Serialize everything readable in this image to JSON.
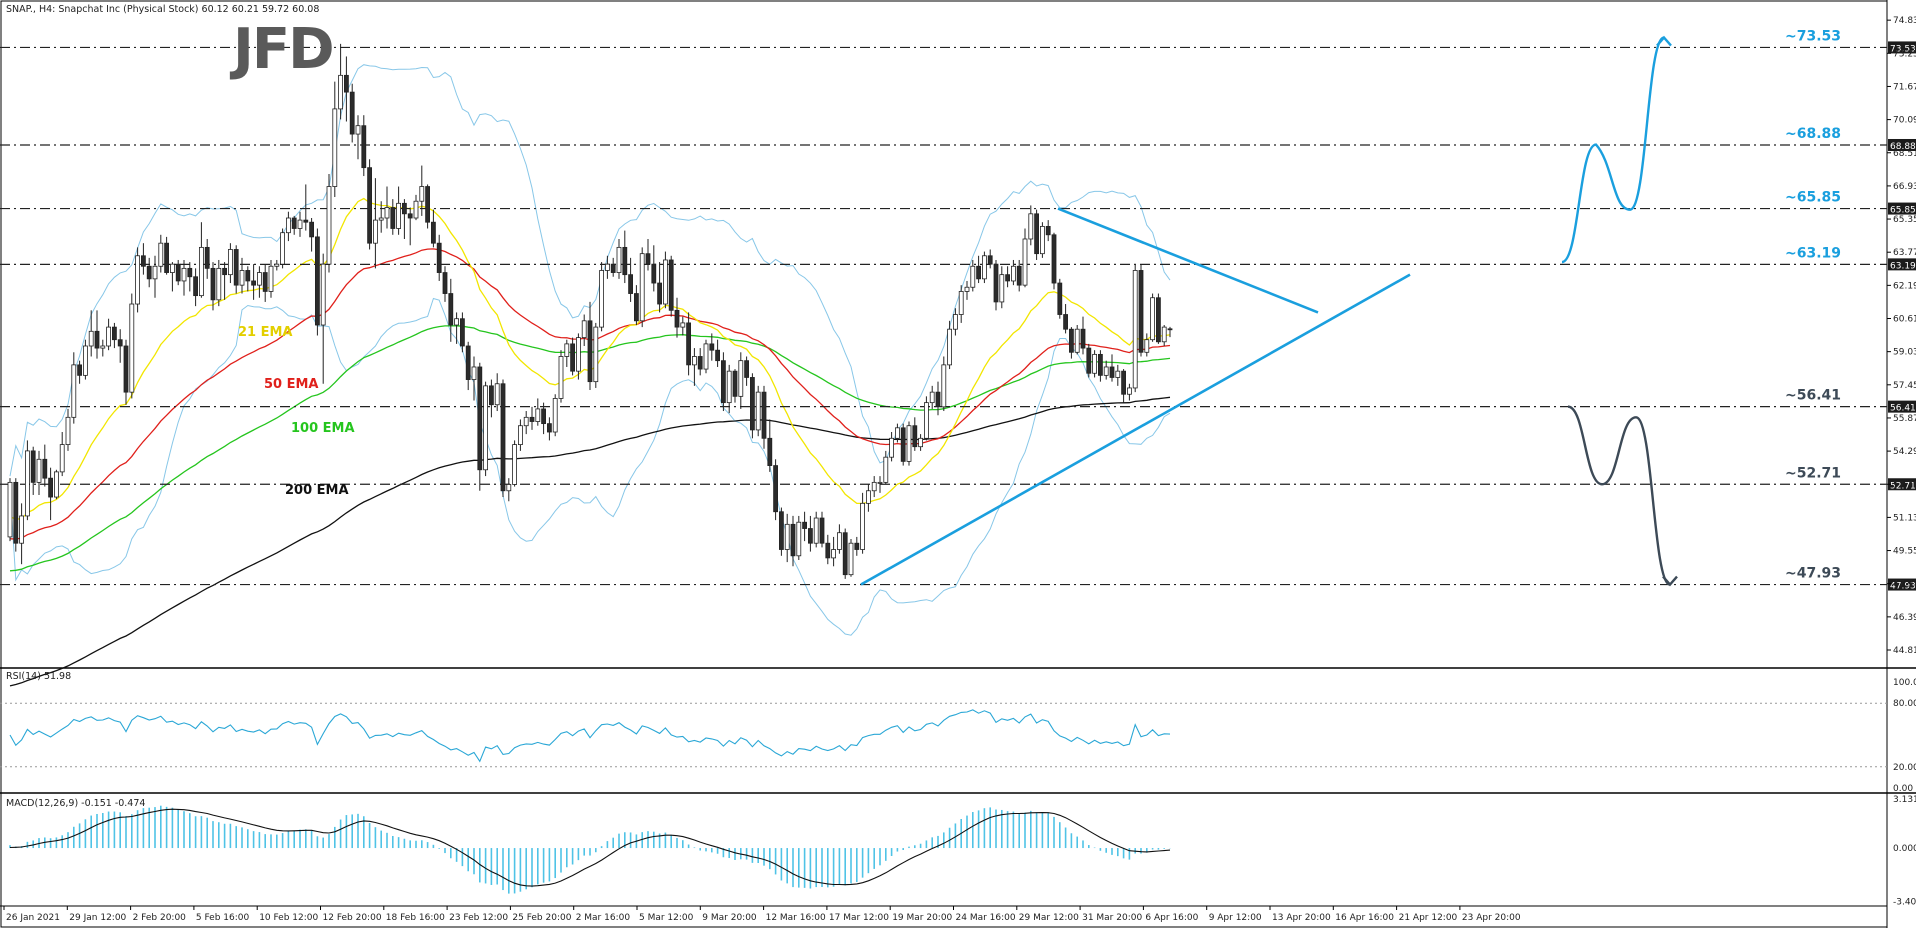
{
  "header": {
    "title": "SNAP., H4:  Snapchat Inc (Physical Stock)  60.12 60.21 59.72 60.08"
  },
  "logo_text": "JFD",
  "colors": {
    "background": "#ffffff",
    "bull_candle": "#ffffff",
    "bear_candle": "#2b2b2b",
    "ema21": "#f2e600",
    "ema50": "#e0201b",
    "ema100": "#25c51e",
    "ema200": "#111111",
    "bollinger": "#88c7e8",
    "trendline": "#1a9fde",
    "level_label": "#1a9fde",
    "scenario_up": "#1a9fde",
    "scenario_down": "#3d4a57",
    "rsi_line": "#2aa7d6",
    "macd_hist": "#4fc3e6",
    "macd_signal": "#111111"
  },
  "ema_labels": {
    "ema21": "21 EMA",
    "ema50": "50 EMA",
    "ema100": "100 EMA",
    "ema200": "200 EMA"
  },
  "levels": [
    {
      "value": 73.53,
      "label": "~73.53",
      "axis_label": "73.53"
    },
    {
      "value": 68.88,
      "label": "~68.88",
      "axis_label": "68.88"
    },
    {
      "value": 65.85,
      "label": "~65.85",
      "axis_label": "65.85"
    },
    {
      "value": 63.19,
      "label": "~63.19",
      "axis_label": "63.19"
    },
    {
      "value": 56.41,
      "label": "~56.41",
      "axis_label": "56.41"
    },
    {
      "value": 52.71,
      "label": "~52.71",
      "axis_label": "52.71"
    },
    {
      "value": 47.93,
      "label": "~47.93",
      "axis_label": "47.93"
    }
  ],
  "price_axis_ticks": [
    "74.83",
    "73.25",
    "71.67",
    "70.09",
    "68.51",
    "66.93",
    "65.35",
    "63.77",
    "62.19",
    "60.61",
    "59.03",
    "57.45",
    "55.87",
    "54.29",
    "52.71",
    "51.13",
    "49.55",
    "47.97",
    "46.39",
    "44.81"
  ],
  "rsi": {
    "label": "RSI(14) 51.98",
    "ticks": [
      "100.00",
      "80.00",
      "20.00",
      "0.00"
    ]
  },
  "macd": {
    "label": "MACD(12,26,9) -0.151 -0.474",
    "ticks": [
      "3.131",
      "0.000",
      "-3.405"
    ]
  },
  "time_axis": [
    "26 Jan 2021",
    "29 Jan 12:00",
    "2 Feb 20:00",
    "5 Feb 16:00",
    "10 Feb 12:00",
    "12 Feb 20:00",
    "18 Feb 16:00",
    "23 Feb 12:00",
    "25 Feb 20:00",
    "2 Mar 16:00",
    "5 Mar 12:00",
    "9 Mar 20:00",
    "12 Mar 16:00",
    "17 Mar 12:00",
    "19 Mar 20:00",
    "24 Mar 16:00",
    "29 Mar 12:00",
    "31 Mar 20:00",
    "6 Apr 16:00",
    "9 Apr 12:00",
    "13 Apr 20:00",
    "16 Apr 16:00",
    "21 Apr 12:00",
    "23 Apr 20:00"
  ],
  "chart_data": {
    "type": "candlestick",
    "symbol": "SNAP",
    "timeframe": "H4",
    "ylim": [
      44.0,
      75.6
    ],
    "candles": [
      [
        50.2,
        53.0,
        50.0,
        52.8
      ],
      [
        52.8,
        53.0,
        49.5,
        49.9
      ],
      [
        49.9,
        51.8,
        48.9,
        51.2
      ],
      [
        51.2,
        54.8,
        51.0,
        54.3
      ],
      [
        54.3,
        54.5,
        52.2,
        52.8
      ],
      [
        52.8,
        54.3,
        52.2,
        53.9
      ],
      [
        53.9,
        54.6,
        52.6,
        53.0
      ],
      [
        53.0,
        53.5,
        51.0,
        52.1
      ],
      [
        52.1,
        53.4,
        52.0,
        53.3
      ],
      [
        53.3,
        55.2,
        53.1,
        54.6
      ],
      [
        54.6,
        56.3,
        54.3,
        55.9
      ],
      [
        55.9,
        59.0,
        55.6,
        58.4
      ],
      [
        58.4,
        58.6,
        57.5,
        57.9
      ],
      [
        57.9,
        59.6,
        57.7,
        59.3
      ],
      [
        59.3,
        61.0,
        58.8,
        60.0
      ],
      [
        60.0,
        61.0,
        58.7,
        59.2
      ],
      [
        59.2,
        59.6,
        58.8,
        59.3
      ],
      [
        59.3,
        60.6,
        59.1,
        60.2
      ],
      [
        60.2,
        60.4,
        59.2,
        59.6
      ],
      [
        59.6,
        60.1,
        58.5,
        59.3
      ],
      [
        59.3,
        59.6,
        56.5,
        57.1
      ],
      [
        57.1,
        61.8,
        56.8,
        61.3
      ],
      [
        61.3,
        64.0,
        60.9,
        63.6
      ],
      [
        63.6,
        64.2,
        62.7,
        63.1
      ],
      [
        63.1,
        63.5,
        62.1,
        62.5
      ],
      [
        62.5,
        63.6,
        61.6,
        63.1
      ],
      [
        63.1,
        64.6,
        62.8,
        64.2
      ],
      [
        64.2,
        64.5,
        62.7,
        62.8
      ],
      [
        62.8,
        63.3,
        61.9,
        63.2
      ],
      [
        63.2,
        63.4,
        62.2,
        62.4
      ],
      [
        62.4,
        63.4,
        61.7,
        63.0
      ],
      [
        63.0,
        63.3,
        61.9,
        62.6
      ],
      [
        62.6,
        63.0,
        61.2,
        61.7
      ],
      [
        61.7,
        65.2,
        61.6,
        64.0
      ],
      [
        64.0,
        64.4,
        62.5,
        63.0
      ],
      [
        63.0,
        63.3,
        61.0,
        61.5
      ],
      [
        61.5,
        63.4,
        61.2,
        63.0
      ],
      [
        63.0,
        63.3,
        61.5,
        62.7
      ],
      [
        62.7,
        64.2,
        62.3,
        63.9
      ],
      [
        63.9,
        64.1,
        61.8,
        62.2
      ],
      [
        62.2,
        63.5,
        61.8,
        62.9
      ],
      [
        62.9,
        63.1,
        61.9,
        62.4
      ],
      [
        62.4,
        63.2,
        61.5,
        62.2
      ],
      [
        62.2,
        63.1,
        61.6,
        62.8
      ],
      [
        62.8,
        63.2,
        61.4,
        61.9
      ],
      [
        61.9,
        63.4,
        61.6,
        63.1
      ],
      [
        63.1,
        63.4,
        62.9,
        63.2
      ],
      [
        63.2,
        64.9,
        63.0,
        64.7
      ],
      [
        64.7,
        65.7,
        64.3,
        65.4
      ],
      [
        65.4,
        65.5,
        64.6,
        64.9
      ],
      [
        64.9,
        65.7,
        64.5,
        65.3
      ],
      [
        65.3,
        67.0,
        64.8,
        65.2
      ],
      [
        65.2,
        65.4,
        63.8,
        64.5
      ],
      [
        64.5,
        64.9,
        59.8,
        60.3
      ],
      [
        60.3,
        63.7,
        57.5,
        63.2
      ],
      [
        63.2,
        67.5,
        62.8,
        66.9
      ],
      [
        66.9,
        71.9,
        66.4,
        70.6
      ],
      [
        70.6,
        73.7,
        70.1,
        72.2
      ],
      [
        72.2,
        73.1,
        70.0,
        71.4
      ],
      [
        71.4,
        71.8,
        69.0,
        69.4
      ],
      [
        69.4,
        70.3,
        68.2,
        69.8
      ],
      [
        69.8,
        70.3,
        67.4,
        67.8
      ],
      [
        67.8,
        68.2,
        63.9,
        64.2
      ],
      [
        64.2,
        67.3,
        63.0,
        65.3
      ],
      [
        65.3,
        66.2,
        64.7,
        65.4
      ],
      [
        65.4,
        66.9,
        64.9,
        65.9
      ],
      [
        65.9,
        66.3,
        64.6,
        64.9
      ],
      [
        64.9,
        66.9,
        64.6,
        66.1
      ],
      [
        66.1,
        66.3,
        64.4,
        65.6
      ],
      [
        65.6,
        65.9,
        64.1,
        65.4
      ],
      [
        65.4,
        66.5,
        65.3,
        66.2
      ],
      [
        66.2,
        67.9,
        65.5,
        66.9
      ],
      [
        66.9,
        67.0,
        64.9,
        65.2
      ],
      [
        65.2,
        65.8,
        64.0,
        64.2
      ],
      [
        64.2,
        64.6,
        62.4,
        62.8
      ],
      [
        62.8,
        63.1,
        61.4,
        61.8
      ],
      [
        61.8,
        62.5,
        59.5,
        60.3
      ],
      [
        60.3,
        60.9,
        59.4,
        60.6
      ],
      [
        60.6,
        60.9,
        59.0,
        59.3
      ],
      [
        59.3,
        59.5,
        57.2,
        57.7
      ],
      [
        57.7,
        58.8,
        56.7,
        58.3
      ],
      [
        58.3,
        58.5,
        52.4,
        53.4
      ],
      [
        53.4,
        57.6,
        53.1,
        57.4
      ],
      [
        57.4,
        57.7,
        55.9,
        56.5
      ],
      [
        56.5,
        58.0,
        56.2,
        57.5
      ],
      [
        57.5,
        57.7,
        52.1,
        52.4
      ],
      [
        52.4,
        53.0,
        51.9,
        52.7
      ],
      [
        52.7,
        54.8,
        52.6,
        54.6
      ],
      [
        54.6,
        55.8,
        54.3,
        55.5
      ],
      [
        55.5,
        56.2,
        55.1,
        55.9
      ],
      [
        55.9,
        56.4,
        55.3,
        55.7
      ],
      [
        55.7,
        56.8,
        55.5,
        56.3
      ],
      [
        56.3,
        56.6,
        55.1,
        55.6
      ],
      [
        55.6,
        55.9,
        54.8,
        55.2
      ],
      [
        55.2,
        57.0,
        55.0,
        56.8
      ],
      [
        56.8,
        59.1,
        56.6,
        58.8
      ],
      [
        58.8,
        59.6,
        58.3,
        59.4
      ],
      [
        59.4,
        59.7,
        57.9,
        58.1
      ],
      [
        58.1,
        59.9,
        57.7,
        59.7
      ],
      [
        59.7,
        60.8,
        59.3,
        60.5
      ],
      [
        60.5,
        61.4,
        57.2,
        57.6
      ],
      [
        57.6,
        60.4,
        57.3,
        60.2
      ],
      [
        60.2,
        63.3,
        60.0,
        62.9
      ],
      [
        62.9,
        63.6,
        62.5,
        63.2
      ],
      [
        63.2,
        63.5,
        62.6,
        62.8
      ],
      [
        62.8,
        64.4,
        62.5,
        64.0
      ],
      [
        64.0,
        64.8,
        62.3,
        62.7
      ],
      [
        62.7,
        63.5,
        61.4,
        61.8
      ],
      [
        61.8,
        62.2,
        60.3,
        60.5
      ],
      [
        60.5,
        64.0,
        60.2,
        63.7
      ],
      [
        63.7,
        64.4,
        62.9,
        63.2
      ],
      [
        63.2,
        64.1,
        61.9,
        62.3
      ],
      [
        62.3,
        63.3,
        60.9,
        61.3
      ],
      [
        61.3,
        63.8,
        61.1,
        63.4
      ],
      [
        63.4,
        63.6,
        60.7,
        61.0
      ],
      [
        61.0,
        61.6,
        59.7,
        60.2
      ],
      [
        60.2,
        60.7,
        59.8,
        60.4
      ],
      [
        60.4,
        60.9,
        57.9,
        58.4
      ],
      [
        58.4,
        59.2,
        57.4,
        58.8
      ],
      [
        58.8,
        59.2,
        57.9,
        58.2
      ],
      [
        58.2,
        59.6,
        58.0,
        59.4
      ],
      [
        59.4,
        59.9,
        58.6,
        59.1
      ],
      [
        59.1,
        59.6,
        58.3,
        58.6
      ],
      [
        58.6,
        59.0,
        56.2,
        56.6
      ],
      [
        56.6,
        58.4,
        56.1,
        58.1
      ],
      [
        58.1,
        58.2,
        56.6,
        56.9
      ],
      [
        56.9,
        59.0,
        56.3,
        58.6
      ],
      [
        58.6,
        58.8,
        57.4,
        57.8
      ],
      [
        57.8,
        58.0,
        54.9,
        55.3
      ],
      [
        55.3,
        57.4,
        55.0,
        57.1
      ],
      [
        57.1,
        57.4,
        54.4,
        54.9
      ],
      [
        54.9,
        55.8,
        53.3,
        53.6
      ],
      [
        53.6,
        53.9,
        51.0,
        51.4
      ],
      [
        51.4,
        51.6,
        49.3,
        49.6
      ],
      [
        49.6,
        51.3,
        49.0,
        50.8
      ],
      [
        50.8,
        51.2,
        48.8,
        49.3
      ],
      [
        49.3,
        51.2,
        49.1,
        50.9
      ],
      [
        50.9,
        51.4,
        50.0,
        50.6
      ],
      [
        50.6,
        51.2,
        49.5,
        49.9
      ],
      [
        49.9,
        51.4,
        49.7,
        51.1
      ],
      [
        51.1,
        51.4,
        49.7,
        49.9
      ],
      [
        49.9,
        50.3,
        48.9,
        49.2
      ],
      [
        49.2,
        50.2,
        48.8,
        49.6
      ],
      [
        49.6,
        50.8,
        49.4,
        50.4
      ],
      [
        50.4,
        50.6,
        48.2,
        48.4
      ],
      [
        48.4,
        50.1,
        48.3,
        49.9
      ],
      [
        49.9,
        50.2,
        49.3,
        49.6
      ],
      [
        49.6,
        52.3,
        49.4,
        51.8
      ],
      [
        51.8,
        52.7,
        51.4,
        52.4
      ],
      [
        52.4,
        53.1,
        52.1,
        52.8
      ],
      [
        52.8,
        53.1,
        52.3,
        52.8
      ],
      [
        52.8,
        54.3,
        52.7,
        54.0
      ],
      [
        54.0,
        55.2,
        53.8,
        54.9
      ],
      [
        54.9,
        55.6,
        54.7,
        55.4
      ],
      [
        55.4,
        55.6,
        53.6,
        53.8
      ],
      [
        53.8,
        55.7,
        53.6,
        55.5
      ],
      [
        55.5,
        55.9,
        54.3,
        54.5
      ],
      [
        54.5,
        55.1,
        54.3,
        54.9
      ],
      [
        54.9,
        56.9,
        54.8,
        56.6
      ],
      [
        56.6,
        57.4,
        56.3,
        57.1
      ],
      [
        57.1,
        57.6,
        56.0,
        56.4
      ],
      [
        56.4,
        58.8,
        56.2,
        58.4
      ],
      [
        58.4,
        60.5,
        58.2,
        60.1
      ],
      [
        60.1,
        61.1,
        59.8,
        60.8
      ],
      [
        60.8,
        62.2,
        60.4,
        61.9
      ],
      [
        61.9,
        62.4,
        61.5,
        62.1
      ],
      [
        62.1,
        63.4,
        61.9,
        63.1
      ],
      [
        63.1,
        63.6,
        62.3,
        62.5
      ],
      [
        62.5,
        63.8,
        62.3,
        63.6
      ],
      [
        63.6,
        63.9,
        63.0,
        63.2
      ],
      [
        63.2,
        63.4,
        61.0,
        61.4
      ],
      [
        61.4,
        63.1,
        61.1,
        62.7
      ],
      [
        62.7,
        63.1,
        62.1,
        62.4
      ],
      [
        62.4,
        63.4,
        62.2,
        63.1
      ],
      [
        63.1,
        63.4,
        61.9,
        62.2
      ],
      [
        62.2,
        64.9,
        62.1,
        64.4
      ],
      [
        64.4,
        66.0,
        64.1,
        65.6
      ],
      [
        65.6,
        65.8,
        63.4,
        63.7
      ],
      [
        63.7,
        65.2,
        63.5,
        65.0
      ],
      [
        65.0,
        65.3,
        64.3,
        64.6
      ],
      [
        64.6,
        64.7,
        62.0,
        62.3
      ],
      [
        62.3,
        62.5,
        60.6,
        60.8
      ],
      [
        60.8,
        61.3,
        59.9,
        60.1
      ],
      [
        60.1,
        60.2,
        58.7,
        59.0
      ],
      [
        59.0,
        60.3,
        58.9,
        60.1
      ],
      [
        60.1,
        60.7,
        58.9,
        59.2
      ],
      [
        59.2,
        59.4,
        57.8,
        58.0
      ],
      [
        58.0,
        59.1,
        57.8,
        58.9
      ],
      [
        58.9,
        59.1,
        57.6,
        57.9
      ],
      [
        57.9,
        58.6,
        57.7,
        58.3
      ],
      [
        58.3,
        58.9,
        57.6,
        57.8
      ],
      [
        57.8,
        58.4,
        57.4,
        58.1
      ],
      [
        58.1,
        58.2,
        56.6,
        57.0
      ],
      [
        57.0,
        57.5,
        56.7,
        57.3
      ],
      [
        57.3,
        63.2,
        57.1,
        62.9
      ],
      [
        62.9,
        63.2,
        58.8,
        59.0
      ],
      [
        59.0,
        59.9,
        58.8,
        59.6
      ],
      [
        59.6,
        61.8,
        59.5,
        61.6
      ],
      [
        61.6,
        61.8,
        59.4,
        59.5
      ],
      [
        59.5,
        60.3,
        59.3,
        60.2
      ],
      [
        60.12,
        60.21,
        59.72,
        60.08
      ]
    ],
    "scenario_up": [
      [
        63.3,
        68.9
      ],
      [
        68.0,
        65.8
      ],
      [
        65.8,
        74.0
      ]
    ],
    "scenario_down": [
      [
        56.41,
        52.71
      ],
      [
        52.71,
        55.9
      ],
      [
        55.9,
        47.93
      ]
    ],
    "triangle_upper": {
      "from": [
        1058,
        65.85
      ],
      "to": [
        1318,
        60.9
      ]
    },
    "triangle_lower": {
      "from": [
        861,
        47.93
      ],
      "to": [
        1410,
        62.7
      ]
    }
  }
}
